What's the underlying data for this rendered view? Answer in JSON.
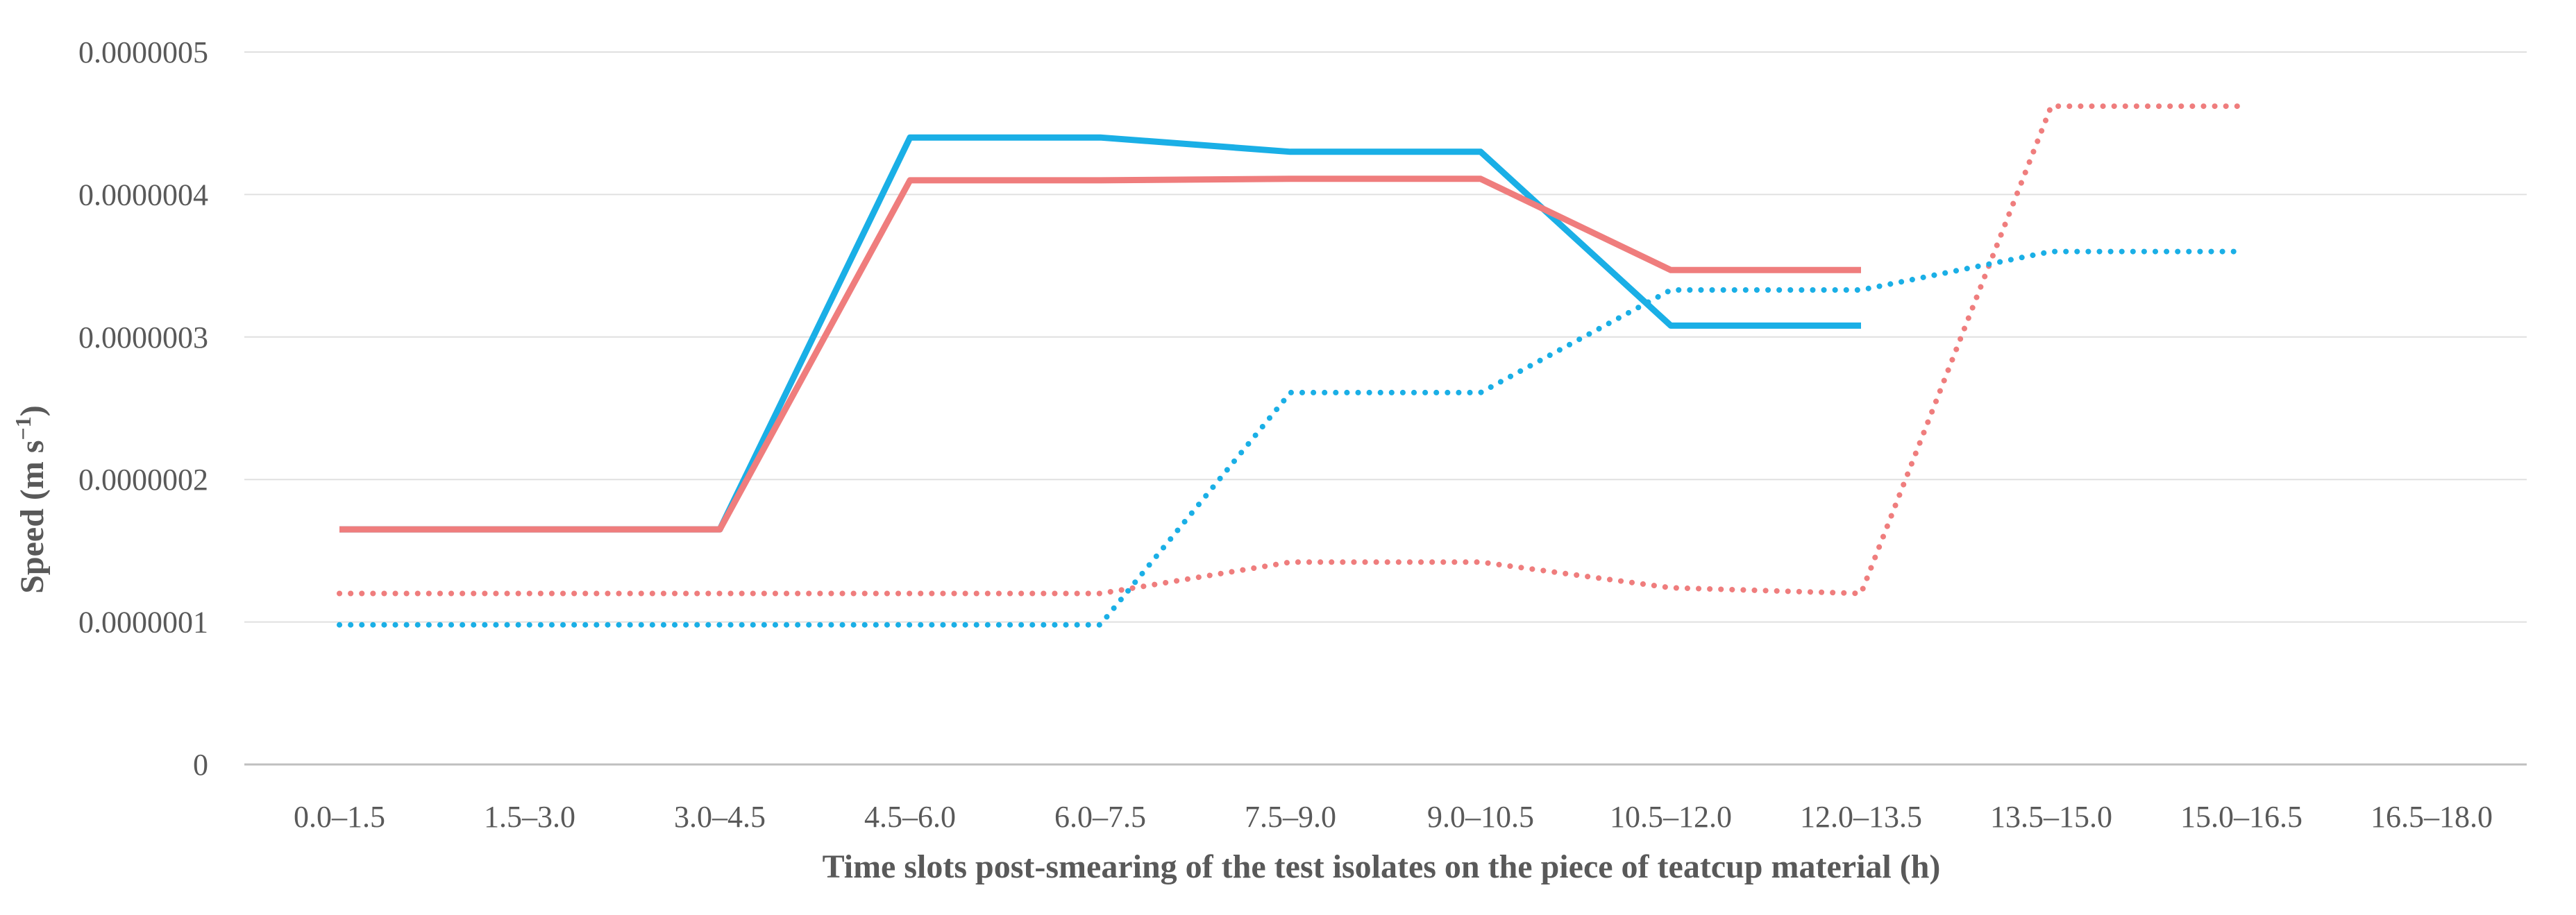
{
  "chart_data": {
    "type": "line",
    "title": "",
    "xlabel": "Time slots post-smearing of the test isolates on the piece of teatcup material (h)",
    "ylabel_main": "Speed (m s",
    "ylabel_sup": "−1",
    "ylabel_end": ")",
    "ylim": [
      0,
      5e-07
    ],
    "yticks": [
      0,
      1e-07,
      2e-07,
      3e-07,
      4e-07,
      5e-07
    ],
    "ytick_labels": [
      "0",
      "0.0000001",
      "0.0000002",
      "0.0000003",
      "0.0000004",
      "0.0000005"
    ],
    "grid": true,
    "legend": "none",
    "categories": [
      "0.0–1.5",
      "1.5–3.0",
      "3.0–4.5",
      "4.5–6.0",
      "6.0–7.5",
      "7.5–9.0",
      "9.0–10.5",
      "10.5–12.0",
      "12.0–13.5",
      "13.5–15.0",
      "15.0–16.5",
      "16.5–18.0"
    ],
    "series": [
      {
        "name": "blue-solid",
        "color": "#1aafe6",
        "style": "solid",
        "values": [
          1.65e-07,
          1.65e-07,
          1.65e-07,
          4.4e-07,
          4.4e-07,
          4.3e-07,
          4.3e-07,
          3.08e-07,
          3.08e-07,
          null,
          null,
          null
        ]
      },
      {
        "name": "red-solid",
        "color": "#ef7d7d",
        "style": "solid",
        "values": [
          1.65e-07,
          1.65e-07,
          1.65e-07,
          4.1e-07,
          4.1e-07,
          4.11e-07,
          4.11e-07,
          3.47e-07,
          3.47e-07,
          null,
          null,
          null
        ]
      },
      {
        "name": "red-dotted",
        "color": "#ef7d7d",
        "style": "dotted",
        "values": [
          1.2e-07,
          1.2e-07,
          1.2e-07,
          1.2e-07,
          1.2e-07,
          1.42e-07,
          1.42e-07,
          1.24e-07,
          1.2e-07,
          4.62e-07,
          4.62e-07,
          null
        ]
      },
      {
        "name": "blue-dotted",
        "color": "#1aafe6",
        "style": "dotted",
        "values": [
          9.8e-08,
          9.8e-08,
          9.8e-08,
          9.8e-08,
          9.8e-08,
          2.61e-07,
          2.61e-07,
          3.33e-07,
          3.33e-07,
          3.6e-07,
          3.6e-07,
          null
        ]
      }
    ],
    "colors": {
      "grid": "#e0e0e0",
      "axis": "#bfbfbf",
      "text": "#595959"
    }
  }
}
